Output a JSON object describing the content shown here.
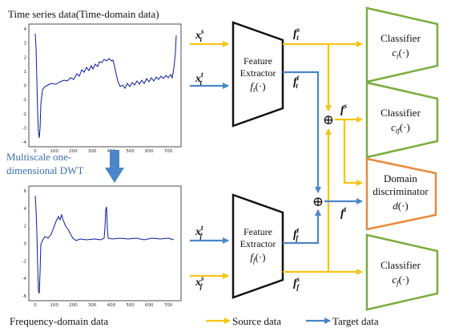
{
  "colors": {
    "source": "#f5c518",
    "target": "#4a86c8",
    "classifier": "#7aad3c",
    "discriminator": "#e88a3a",
    "signal": "#0a1aa0",
    "dwt_arrow": "#4a86c8"
  },
  "time_panel": {
    "title": "Time series data(Time-domain data)",
    "y_ticks": [
      "4",
      "3",
      "2",
      "1",
      "0",
      "-1",
      "-2",
      "-3",
      "-4"
    ],
    "x_ticks": [
      "0",
      "100",
      "200",
      "300",
      "400",
      "500",
      "600",
      "700"
    ]
  },
  "freq_panel": {
    "title": "Frequency-domain data",
    "y_ticks": [
      "6",
      "4",
      "2",
      "0",
      "-2",
      "-4",
      "-6"
    ],
    "x_ticks": [
      "0",
      "100",
      "200",
      "300",
      "400",
      "500",
      "600",
      "700"
    ]
  },
  "dwt_label": {
    "line1": "Multiscale one-",
    "line2": "dimensional DWT"
  },
  "feature_extractor_time": {
    "line1": "Feature",
    "line2": "Extractor",
    "func": "f",
    "func_sub": "t",
    "func_arg": "(·)"
  },
  "feature_extractor_freq": {
    "line1": "Feature",
    "line2": "Extractor",
    "func": "f",
    "func_sub": "f",
    "func_arg": "(·)"
  },
  "inputs": {
    "xts": {
      "base": "x",
      "sub": "t",
      "sup": "s"
    },
    "xtt": {
      "base": "x",
      "sub": "t",
      "sup": "t"
    },
    "xft": {
      "base": "x",
      "sub": "f",
      "sup": "t"
    },
    "xfs": {
      "base": "x",
      "sub": "f",
      "sup": "s"
    }
  },
  "features": {
    "fts": {
      "base": "f",
      "sub": "t",
      "sup": "s"
    },
    "ftt": {
      "base": "f",
      "sub": "t",
      "sup": "t"
    },
    "fft": {
      "base": "f",
      "sub": "f",
      "sup": "t"
    },
    "ffs": {
      "base": "f",
      "sub": "f",
      "sup": "s"
    },
    "fs": {
      "base": "f",
      "sup": "s"
    },
    "ft": {
      "base": "f",
      "sup": "t"
    }
  },
  "plus_symbol": "⊕",
  "classifier_t": {
    "label": "Classifier",
    "func": "c",
    "sub": "t",
    "arg": "(·)"
  },
  "classifier_tf": {
    "label": "Classifier",
    "func": "c",
    "sub": "tf",
    "arg": "(·)"
  },
  "classifier_f": {
    "label": "Classifier",
    "func": "c",
    "sub": "f",
    "arg": "(·)"
  },
  "discriminator": {
    "line1": "Domain",
    "line2": "discriminator",
    "func": "d",
    "arg": "(·)"
  },
  "legend": {
    "source": "Source data",
    "target": "Target data"
  }
}
